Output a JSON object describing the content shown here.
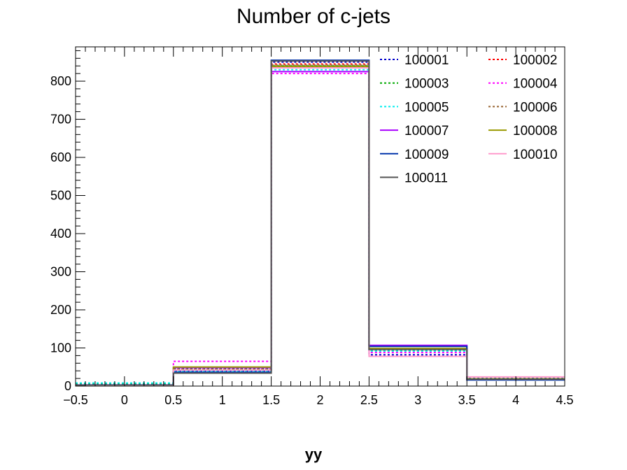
{
  "chart_data": {
    "type": "step-histogram",
    "title": "Number of c-jets",
    "xlabel": "yy",
    "ylabel": "",
    "xlim": [
      -0.5,
      4.5
    ],
    "ylim": [
      0,
      890
    ],
    "x_ticks": [
      -0.5,
      0,
      0.5,
      1,
      1.5,
      2,
      2.5,
      3,
      3.5,
      4,
      4.5
    ],
    "x_tick_labels": [
      "−0.5",
      "0",
      "0.5",
      "1",
      "1.5",
      "2",
      "2.5",
      "3",
      "3.5",
      "4",
      "4.5"
    ],
    "y_ticks": [
      0,
      100,
      200,
      300,
      400,
      500,
      600,
      700,
      800
    ],
    "y_tick_labels": [
      "0",
      "100",
      "200",
      "300",
      "400",
      "500",
      "600",
      "700",
      "800"
    ],
    "bin_edges": [
      -0.5,
      0.5,
      1.5,
      2.5,
      3.5,
      4.5
    ],
    "legend_position": "top-right",
    "series": [
      {
        "name": "100001",
        "color": "#0000cc",
        "dashed": true,
        "values": [
          3,
          40,
          850,
          82,
          20
        ]
      },
      {
        "name": "100002",
        "color": "#ff0000",
        "dashed": true,
        "values": [
          2,
          42,
          845,
          95,
          18
        ]
      },
      {
        "name": "100003",
        "color": "#00aa00",
        "dashed": true,
        "values": [
          5,
          45,
          840,
          93,
          18
        ]
      },
      {
        "name": "100004",
        "color": "#ff00ff",
        "dashed": true,
        "values": [
          3,
          65,
          820,
          88,
          17
        ]
      },
      {
        "name": "100005",
        "color": "#00eeee",
        "dashed": true,
        "values": [
          8,
          38,
          830,
          92,
          19
        ]
      },
      {
        "name": "100006",
        "color": "#996633",
        "dashed": true,
        "values": [
          2,
          44,
          842,
          97,
          18
        ]
      },
      {
        "name": "100007",
        "color": "#aa00ff",
        "dashed": false,
        "values": [
          2,
          48,
          825,
          107,
          18
        ]
      },
      {
        "name": "100008",
        "color": "#999900",
        "dashed": false,
        "values": [
          2,
          50,
          838,
          99,
          19
        ]
      },
      {
        "name": "100009",
        "color": "#0033aa",
        "dashed": false,
        "values": [
          3,
          36,
          855,
          104,
          16
        ]
      },
      {
        "name": "100010",
        "color": "#ff99cc",
        "dashed": false,
        "values": [
          2,
          42,
          835,
          78,
          24
        ]
      },
      {
        "name": "100011",
        "color": "#555555",
        "dashed": false,
        "values": [
          2,
          34,
          853,
          96,
          18
        ]
      }
    ]
  }
}
